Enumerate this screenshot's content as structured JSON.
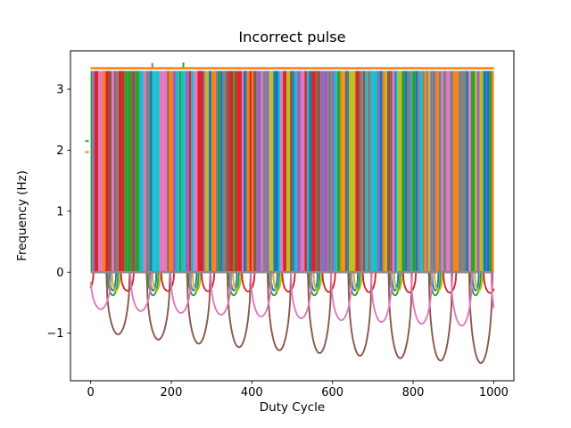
{
  "figure": {
    "background": "#ffffff"
  },
  "chart_data": {
    "type": "line",
    "title": "Incorrect pulse",
    "xlabel": "Duty Cycle",
    "ylabel": "Frequency (Hz)",
    "xlim": [
      -50,
      1050
    ],
    "ylim": [
      -1.78,
      3.63
    ],
    "grid": false,
    "legend": "none",
    "xticks": {
      "positions": [
        0,
        200,
        400,
        600,
        800,
        1000
      ],
      "labels": [
        "0",
        "200",
        "400",
        "600",
        "800",
        "1000"
      ]
    },
    "yticks": {
      "positions": [
        -1,
        0,
        1,
        2,
        3
      ],
      "labels": [
        "−1",
        "0",
        "1",
        "2",
        "3"
      ]
    },
    "palette": [
      "#1f77b4",
      "#ff7f0e",
      "#2ca02c",
      "#d62728",
      "#9467bd",
      "#8c564b",
      "#e377c2",
      "#7f7f7f",
      "#bcbd22",
      "#17becf"
    ],
    "pulse_band": {
      "note": "dense aliased vertical pulse traces cycling through the matplotlib palette",
      "x_start": 0,
      "x_end": 1000,
      "y_bottom": 0,
      "y_top": 3.3,
      "cap_y": 3.345,
      "cap_color": "#ff7f0e",
      "baseline_y": 0,
      "baseline_color": "#95868b",
      "last_stripe_color": "#ff7f0e"
    },
    "cap_blips": [
      {
        "x": 153,
        "y1": 3.36,
        "y2": 3.43,
        "color": "#7f7f7f"
      },
      {
        "x": 230,
        "y1": 3.36,
        "y2": 3.44,
        "color": "#2ca02c"
      }
    ],
    "edge_blips": [
      {
        "x": -9,
        "y": 2.15,
        "color": "#2ca02c"
      },
      {
        "x": -9,
        "y": 1.97,
        "color": "#ff7f0e"
      }
    ],
    "dip_series": [
      {
        "name": "green",
        "color": "#2ca02c",
        "period": 100,
        "center_offset": 55,
        "halfwidth": 13,
        "depth_start": 0.38,
        "depth_end": 0.38,
        "depth_growth": 1
      },
      {
        "name": "blue",
        "color": "#1f77b4",
        "period": 100,
        "center_offset": 55,
        "halfwidth": 8,
        "depth_start": 0.3,
        "depth_end": 0.3,
        "depth_growth": 1
      },
      {
        "name": "olive",
        "color": "#bcbd22",
        "period": 100,
        "center_offset": 63,
        "halfwidth": 10,
        "depth_start": 0.3,
        "depth_end": 0.3,
        "depth_growth": 1
      },
      {
        "name": "red",
        "color": "#d62728",
        "period": 100,
        "center_offset": 91,
        "halfwidth": 16,
        "depth_start": 0.3,
        "depth_end": 0.34,
        "depth_growth": 1
      },
      {
        "name": "brown",
        "color": "#8c564b",
        "period": 100,
        "center_offset": 68,
        "halfwidth": 29,
        "depth_start": 0.9,
        "depth_end": 1.5,
        "depth_growth": 0.6
      },
      {
        "name": "pink",
        "color": "#e377c2",
        "period": 99.5,
        "center_offset": 25,
        "halfwidth": 26,
        "depth_start": 0.6,
        "depth_end": 0.9,
        "depth_growth": 1
      }
    ]
  }
}
